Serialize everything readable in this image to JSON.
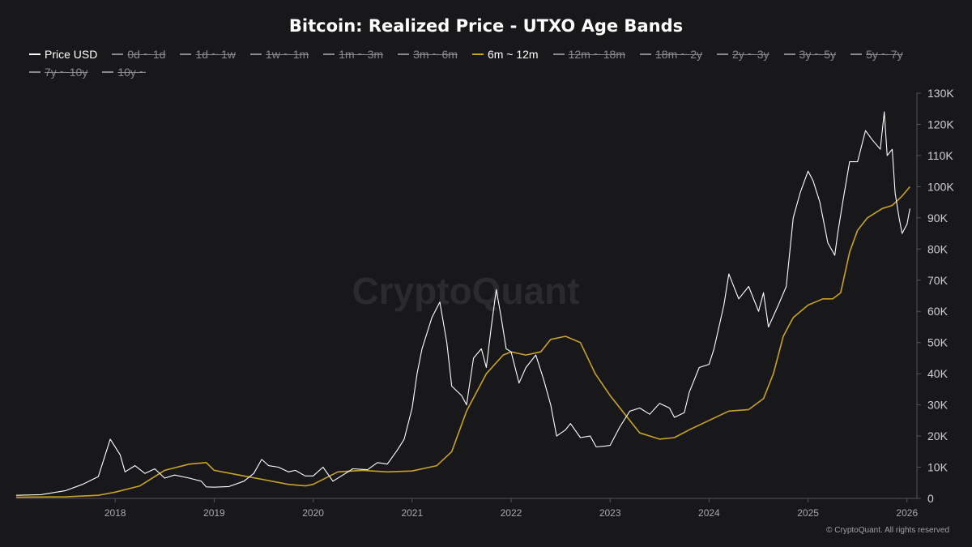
{
  "chart_data": {
    "type": "line",
    "title": "Bitcoin: Realized Price - UTXO Age Bands",
    "watermark": "CryptoQuant",
    "copyright": "© CryptoQuant. All rights reserved",
    "x_ticks": [
      "2018",
      "2019",
      "2020",
      "2021",
      "2022",
      "2023",
      "2024",
      "2025",
      "2026"
    ],
    "y_ticks": [
      "0",
      "10K",
      "20K",
      "30K",
      "40K",
      "50K",
      "60K",
      "70K",
      "80K",
      "90K",
      "100K",
      "110K",
      "120K",
      "130K"
    ],
    "ylim": [
      0,
      130000
    ],
    "xlim": [
      2017.0,
      2026.1
    ],
    "legend": [
      {
        "name": "Price USD",
        "active": true,
        "color": "#ffffff"
      },
      {
        "name": "0d ~ 1d",
        "active": false
      },
      {
        "name": "1d ~ 1w",
        "active": false
      },
      {
        "name": "1w ~ 1m",
        "active": false
      },
      {
        "name": "1m ~ 3m",
        "active": false
      },
      {
        "name": "3m ~ 6m",
        "active": false
      },
      {
        "name": "6m ~ 12m",
        "active": true,
        "color": "#c9a227"
      },
      {
        "name": "12m ~ 18m",
        "active": false
      },
      {
        "name": "18m ~ 2y",
        "active": false
      },
      {
        "name": "2y ~ 3y",
        "active": false
      },
      {
        "name": "3y ~ 5y",
        "active": false
      },
      {
        "name": "5y ~ 7y",
        "active": false
      },
      {
        "name": "7y ~ 10y",
        "active": false
      },
      {
        "name": "10y ~",
        "active": false
      }
    ],
    "series": [
      {
        "name": "Price USD",
        "color": "#ffffff",
        "points": [
          [
            2017.0,
            1000
          ],
          [
            2017.25,
            1200
          ],
          [
            2017.5,
            2500
          ],
          [
            2017.67,
            4500
          ],
          [
            2017.83,
            7000
          ],
          [
            2017.95,
            19000
          ],
          [
            2018.05,
            14000
          ],
          [
            2018.1,
            8500
          ],
          [
            2018.2,
            10500
          ],
          [
            2018.3,
            8000
          ],
          [
            2018.4,
            9500
          ],
          [
            2018.5,
            6500
          ],
          [
            2018.6,
            7500
          ],
          [
            2018.75,
            6500
          ],
          [
            2018.87,
            5500
          ],
          [
            2018.92,
            3700
          ],
          [
            2019.0,
            3600
          ],
          [
            2019.15,
            3800
          ],
          [
            2019.3,
            5500
          ],
          [
            2019.4,
            8000
          ],
          [
            2019.48,
            12500
          ],
          [
            2019.55,
            10500
          ],
          [
            2019.65,
            10000
          ],
          [
            2019.75,
            8500
          ],
          [
            2019.82,
            9000
          ],
          [
            2019.92,
            7200
          ],
          [
            2020.0,
            7200
          ],
          [
            2020.1,
            10000
          ],
          [
            2020.2,
            5500
          ],
          [
            2020.3,
            7500
          ],
          [
            2020.4,
            9500
          ],
          [
            2020.55,
            9200
          ],
          [
            2020.65,
            11500
          ],
          [
            2020.75,
            11000
          ],
          [
            2020.85,
            15500
          ],
          [
            2020.92,
            19000
          ],
          [
            2021.0,
            29000
          ],
          [
            2021.05,
            40000
          ],
          [
            2021.1,
            48000
          ],
          [
            2021.2,
            58000
          ],
          [
            2021.28,
            63000
          ],
          [
            2021.35,
            50000
          ],
          [
            2021.4,
            36000
          ],
          [
            2021.5,
            33000
          ],
          [
            2021.55,
            30000
          ],
          [
            2021.62,
            45000
          ],
          [
            2021.7,
            48000
          ],
          [
            2021.75,
            42000
          ],
          [
            2021.8,
            55000
          ],
          [
            2021.85,
            67000
          ],
          [
            2021.9,
            58000
          ],
          [
            2021.95,
            48000
          ],
          [
            2022.0,
            47000
          ],
          [
            2022.08,
            37000
          ],
          [
            2022.15,
            42000
          ],
          [
            2022.25,
            46000
          ],
          [
            2022.33,
            38000
          ],
          [
            2022.4,
            30000
          ],
          [
            2022.46,
            20000
          ],
          [
            2022.55,
            22000
          ],
          [
            2022.6,
            24000
          ],
          [
            2022.7,
            19500
          ],
          [
            2022.8,
            20000
          ],
          [
            2022.86,
            16500
          ],
          [
            2022.95,
            16800
          ],
          [
            2023.0,
            17000
          ],
          [
            2023.1,
            23000
          ],
          [
            2023.2,
            28000
          ],
          [
            2023.3,
            29000
          ],
          [
            2023.4,
            27000
          ],
          [
            2023.5,
            30500
          ],
          [
            2023.6,
            29000
          ],
          [
            2023.65,
            26000
          ],
          [
            2023.75,
            27500
          ],
          [
            2023.8,
            34000
          ],
          [
            2023.9,
            42000
          ],
          [
            2024.0,
            43000
          ],
          [
            2024.05,
            48000
          ],
          [
            2024.15,
            62000
          ],
          [
            2024.2,
            72000
          ],
          [
            2024.3,
            64000
          ],
          [
            2024.4,
            68000
          ],
          [
            2024.5,
            60000
          ],
          [
            2024.55,
            66000
          ],
          [
            2024.6,
            55000
          ],
          [
            2024.7,
            62000
          ],
          [
            2024.78,
            68000
          ],
          [
            2024.85,
            90000
          ],
          [
            2024.92,
            98000
          ],
          [
            2025.0,
            105000
          ],
          [
            2025.05,
            102000
          ],
          [
            2025.12,
            95000
          ],
          [
            2025.2,
            82000
          ],
          [
            2025.27,
            78000
          ],
          [
            2025.3,
            85000
          ],
          [
            2025.35,
            95000
          ],
          [
            2025.42,
            108000
          ],
          [
            2025.5,
            108000
          ],
          [
            2025.58,
            118000
          ],
          [
            2025.65,
            115000
          ],
          [
            2025.73,
            112000
          ],
          [
            2025.77,
            124000
          ],
          [
            2025.8,
            110000
          ],
          [
            2025.85,
            112000
          ],
          [
            2025.88,
            98000
          ],
          [
            2025.92,
            90000
          ],
          [
            2025.95,
            85000
          ],
          [
            2026.0,
            88000
          ],
          [
            2026.03,
            93000
          ]
        ]
      },
      {
        "name": "6m ~ 12m",
        "color": "#c9a227",
        "points": [
          [
            2017.0,
            400
          ],
          [
            2017.5,
            500
          ],
          [
            2017.83,
            1000
          ],
          [
            2018.0,
            2000
          ],
          [
            2018.25,
            4000
          ],
          [
            2018.5,
            9000
          ],
          [
            2018.75,
            11000
          ],
          [
            2018.92,
            11500
          ],
          [
            2019.0,
            9000
          ],
          [
            2019.25,
            7500
          ],
          [
            2019.5,
            6000
          ],
          [
            2019.75,
            4500
          ],
          [
            2019.92,
            4000
          ],
          [
            2020.0,
            4500
          ],
          [
            2020.25,
            8500
          ],
          [
            2020.5,
            9000
          ],
          [
            2020.75,
            8500
          ],
          [
            2021.0,
            8800
          ],
          [
            2021.25,
            10500
          ],
          [
            2021.4,
            15000
          ],
          [
            2021.55,
            28000
          ],
          [
            2021.75,
            40000
          ],
          [
            2021.92,
            46000
          ],
          [
            2022.0,
            47000
          ],
          [
            2022.15,
            46000
          ],
          [
            2022.3,
            47000
          ],
          [
            2022.4,
            51000
          ],
          [
            2022.55,
            52000
          ],
          [
            2022.7,
            50000
          ],
          [
            2022.85,
            40000
          ],
          [
            2023.0,
            33000
          ],
          [
            2023.15,
            27000
          ],
          [
            2023.3,
            21000
          ],
          [
            2023.5,
            19000
          ],
          [
            2023.65,
            19500
          ],
          [
            2023.8,
            22000
          ],
          [
            2024.0,
            25000
          ],
          [
            2024.2,
            28000
          ],
          [
            2024.4,
            28500
          ],
          [
            2024.55,
            32000
          ],
          [
            2024.65,
            40000
          ],
          [
            2024.75,
            52000
          ],
          [
            2024.85,
            58000
          ],
          [
            2025.0,
            62000
          ],
          [
            2025.15,
            64000
          ],
          [
            2025.25,
            64000
          ],
          [
            2025.33,
            66000
          ],
          [
            2025.42,
            79000
          ],
          [
            2025.5,
            86000
          ],
          [
            2025.6,
            90000
          ],
          [
            2025.75,
            93000
          ],
          [
            2025.85,
            94000
          ],
          [
            2025.95,
            97000
          ],
          [
            2026.03,
            100000
          ]
        ]
      }
    ]
  }
}
